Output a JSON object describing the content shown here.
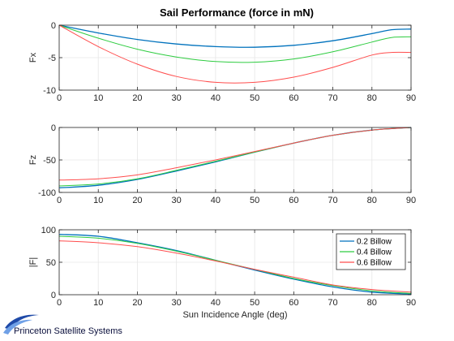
{
  "chart_data": [
    {
      "type": "line",
      "title": "Sail Performance (force in mN)",
      "ylabel": "Fx",
      "xlabel": "",
      "xlim": [
        0,
        90
      ],
      "ylim": [
        -10,
        0
      ],
      "xticks": [
        0,
        10,
        20,
        30,
        40,
        50,
        60,
        70,
        80,
        90
      ],
      "yticks": [
        -10,
        -5,
        0
      ],
      "grid": true,
      "x": [
        0,
        10,
        20,
        30,
        40,
        50,
        60,
        70,
        80,
        85,
        90
      ],
      "series": [
        {
          "name": "0.2 Billow",
          "color": "#0072bd",
          "values": [
            0,
            -1.2,
            -2.2,
            -2.9,
            -3.3,
            -3.4,
            -3.1,
            -2.4,
            -1.3,
            -0.7,
            -0.6
          ]
        },
        {
          "name": "0.4 Billow",
          "color": "#2ecc40",
          "values": [
            0,
            -2.0,
            -3.7,
            -4.9,
            -5.6,
            -5.7,
            -5.2,
            -4.1,
            -2.6,
            -1.9,
            -1.8
          ]
        },
        {
          "name": "0.6 Billow",
          "color": "#ff4d4d",
          "values": [
            0,
            -3.3,
            -6.0,
            -7.9,
            -8.8,
            -8.8,
            -8.0,
            -6.5,
            -4.6,
            -4.2,
            -4.2
          ]
        }
      ]
    },
    {
      "type": "line",
      "title": "",
      "ylabel": "Fz",
      "xlabel": "",
      "xlim": [
        0,
        90
      ],
      "ylim": [
        -100,
        0
      ],
      "xticks": [
        0,
        10,
        20,
        30,
        40,
        50,
        60,
        70,
        80,
        90
      ],
      "yticks": [
        -100,
        -50,
        0
      ],
      "grid": true,
      "x": [
        0,
        10,
        20,
        30,
        40,
        50,
        60,
        70,
        80,
        90
      ],
      "series": [
        {
          "name": "0.2 Billow",
          "color": "#0072bd",
          "values": [
            -93,
            -89,
            -80,
            -67,
            -53,
            -38,
            -24,
            -12,
            -4,
            0
          ]
        },
        {
          "name": "0.4 Billow",
          "color": "#2ecc40",
          "values": [
            -90,
            -87,
            -79,
            -66,
            -52,
            -38,
            -24,
            -12,
            -4,
            0
          ]
        },
        {
          "name": "0.6 Billow",
          "color": "#ff4d4d",
          "values": [
            -81,
            -79,
            -73,
            -62,
            -50,
            -37,
            -24,
            -12,
            -4,
            0
          ]
        }
      ]
    },
    {
      "type": "line",
      "title": "",
      "ylabel": "|F|",
      "xlabel": "Sun Incidence Angle (deg)",
      "xlim": [
        0,
        90
      ],
      "ylim": [
        0,
        100
      ],
      "xticks": [
        0,
        10,
        20,
        30,
        40,
        50,
        60,
        70,
        80,
        90
      ],
      "yticks": [
        0,
        50,
        100
      ],
      "grid": true,
      "legend": "top-right",
      "x": [
        0,
        10,
        20,
        30,
        40,
        50,
        60,
        70,
        80,
        90
      ],
      "series": [
        {
          "name": "0.2 Billow",
          "color": "#0072bd",
          "values": [
            93,
            90,
            80,
            68,
            53,
            38,
            24,
            12,
            4,
            1
          ]
        },
        {
          "name": "0.4 Billow",
          "color": "#2ecc40",
          "values": [
            90,
            87,
            79,
            67,
            53,
            39,
            25,
            14,
            6,
            2
          ]
        },
        {
          "name": "0.6 Billow",
          "color": "#ff4d4d",
          "values": [
            83,
            80,
            74,
            64,
            52,
            39,
            27,
            15,
            8,
            4
          ]
        }
      ]
    }
  ],
  "logo": {
    "text": "Princeton Satellite Systems"
  }
}
